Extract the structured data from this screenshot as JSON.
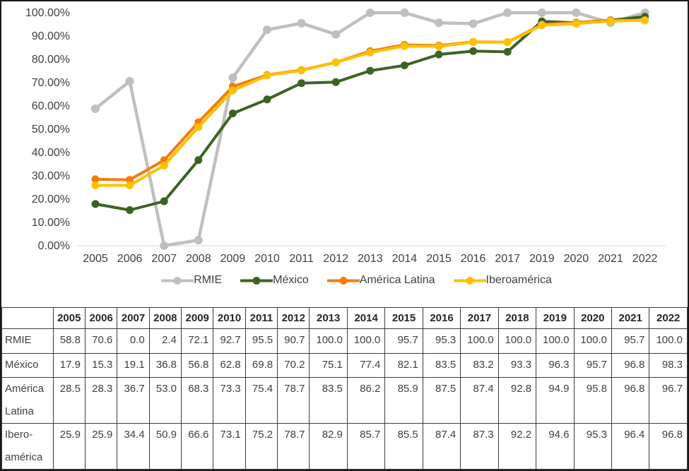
{
  "chart": {
    "y_axis_labels": [
      "100.00%",
      "90.00%",
      "80.00%",
      "70.00%",
      "60.00%",
      "50.00%",
      "40.00%",
      "30.00%",
      "20.00%",
      "10.00%",
      "0.00%"
    ],
    "x_axis_labels": [
      "2005",
      "2006",
      "2007",
      "2008",
      "2009",
      "2010",
      "2011",
      "2012",
      "2013",
      "2014",
      "2015",
      "2016",
      "2017",
      "2019",
      "2020",
      "2021",
      "2022"
    ],
    "legend": [
      {
        "id": "rmie",
        "label": "RMIE",
        "color": "#BFBFBF"
      },
      {
        "id": "mexico",
        "label": "México",
        "color": "#3D6323"
      },
      {
        "id": "america-latina",
        "label": "América Latina",
        "color": "#F57C0E"
      },
      {
        "id": "iberoamerica",
        "label": "Iberoamérica",
        "color": "#FFC000"
      }
    ]
  },
  "chart_data": {
    "type": "line",
    "x": [
      "2005",
      "2006",
      "2007",
      "2008",
      "2009",
      "2010",
      "2011",
      "2012",
      "2013",
      "2014",
      "2015",
      "2016",
      "2017",
      "2019",
      "2020",
      "2021",
      "2022"
    ],
    "note_axis": "category axis; year 2018 not plotted on chart",
    "series": [
      {
        "id": "rmie",
        "name": "RMIE",
        "color": "#BFBFBF",
        "values": [
          58.8,
          70.6,
          0.0,
          2.4,
          72.1,
          92.7,
          95.5,
          90.7,
          100.0,
          100.0,
          95.7,
          95.3,
          100.0,
          100.0,
          100.0,
          95.7,
          100.0
        ]
      },
      {
        "id": "mexico",
        "name": "México",
        "color": "#3D6323",
        "values": [
          17.9,
          15.3,
          19.1,
          36.8,
          56.8,
          62.8,
          69.8,
          70.2,
          75.1,
          77.4,
          82.1,
          83.5,
          83.2,
          96.3,
          95.7,
          96.8,
          98.3
        ]
      },
      {
        "id": "america-latina",
        "name": "América Latina",
        "color": "#F57C0E",
        "values": [
          28.5,
          28.3,
          36.7,
          53.0,
          68.3,
          73.3,
          75.4,
          78.7,
          83.5,
          86.2,
          85.9,
          87.5,
          87.4,
          94.9,
          95.8,
          96.8,
          96.7
        ]
      },
      {
        "id": "iberoamerica",
        "name": "Iberoamérica",
        "color": "#FFC000",
        "values": [
          25.9,
          25.9,
          34.4,
          50.9,
          66.6,
          73.1,
          75.2,
          78.7,
          82.9,
          85.7,
          85.5,
          87.4,
          87.3,
          94.6,
          95.3,
          96.4,
          96.8
        ]
      }
    ],
    "title": "",
    "xlabel": "",
    "ylabel": "",
    "ylim": [
      0,
      100
    ],
    "y_tick_step": 10,
    "y_tick_format": "percent_2dp",
    "grid": false,
    "legend_position": "bottom"
  },
  "table": {
    "corner": "",
    "years": [
      "2005",
      "2006",
      "2007",
      "2008",
      "2009",
      "2010",
      "2011",
      "2012",
      "2013",
      "2014",
      "2015",
      "2016",
      "2017",
      "2018",
      "2019",
      "2020",
      "2021",
      "2022"
    ],
    "rows": [
      {
        "label": "RMIE",
        "values": [
          "58.8",
          "70.6",
          "0.0",
          "2.4",
          "72.1",
          "92.7",
          "95.5",
          "90.7",
          "100.0",
          "100.0",
          "95.7",
          "95.3",
          "100.0",
          "100.0",
          "100.0",
          "100.0",
          "95.7",
          "100.0"
        ]
      },
      {
        "label": "México",
        "values": [
          "17.9",
          "15.3",
          "19.1",
          "36.8",
          "56.8",
          "62.8",
          "69.8",
          "70.2",
          "75.1",
          "77.4",
          "82.1",
          "83.5",
          "83.2",
          "93.3",
          "96.3",
          "95.7",
          "96.8",
          "98.3"
        ]
      },
      {
        "label": "América Latina",
        "values": [
          "28.5",
          "28.3",
          "36.7",
          "53.0",
          "68.3",
          "73.3",
          "75.4",
          "78.7",
          "83.5",
          "86.2",
          "85.9",
          "87.5",
          "87.4",
          "92.8",
          "94.9",
          "95.8",
          "96.8",
          "96.7"
        ]
      },
      {
        "label": "Ibero-américa",
        "values": [
          "25.9",
          "25.9",
          "34.4",
          "50.9",
          "66.6",
          "73.1",
          "75.2",
          "78.7",
          "82.9",
          "85.7",
          "85.5",
          "87.4",
          "87.3",
          "92.2",
          "94.6",
          "95.3",
          "96.4",
          "96.8"
        ]
      }
    ]
  },
  "colors": {
    "axis_text": "#404040",
    "table_border": "#3b3b3b",
    "axis_line": "#D9D9D9",
    "frame_border": "#1a1a1a"
  }
}
